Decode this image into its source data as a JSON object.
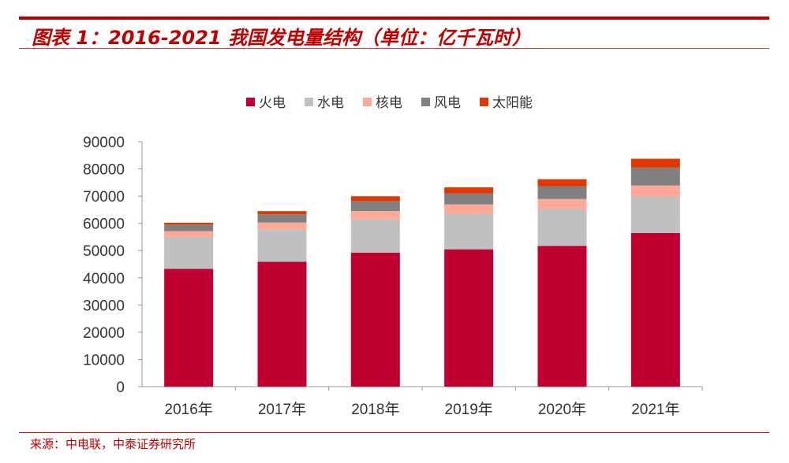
{
  "header": {
    "title": "图表 1：2016-2021 我国发电量结构（单位：亿千瓦时）"
  },
  "footer": {
    "source": "来源：中电联，中泰证券研究所"
  },
  "chart_data": {
    "type": "bar",
    "stacked": true,
    "categories": [
      "2016年",
      "2017年",
      "2018年",
      "2019年",
      "2020年",
      "2021年"
    ],
    "series": [
      {
        "name": "火电",
        "color": "#c00030",
        "values": [
          43273,
          45877,
          49249,
          50465,
          51743,
          56463
        ]
      },
      {
        "name": "水电",
        "color": "#c0c0c0",
        "values": [
          11748,
          11931,
          12321,
          13021,
          13552,
          13401
        ]
      },
      {
        "name": "核电",
        "color": "#ffa898",
        "values": [
          2132,
          2481,
          2944,
          3487,
          3662,
          4075
        ]
      },
      {
        "name": "风电",
        "color": "#808080",
        "values": [
          2409,
          3034,
          3660,
          4057,
          4665,
          6556
        ]
      },
      {
        "name": "太阳能",
        "color": "#e03800",
        "values": [
          665,
          1166,
          1775,
          2238,
          2611,
          3259
        ]
      }
    ],
    "ylim": [
      0,
      90000
    ],
    "yticks": [
      "0",
      "10000",
      "20000",
      "30000",
      "40000",
      "50000",
      "60000",
      "70000",
      "80000",
      "90000"
    ],
    "legend": "top",
    "grid": false
  }
}
